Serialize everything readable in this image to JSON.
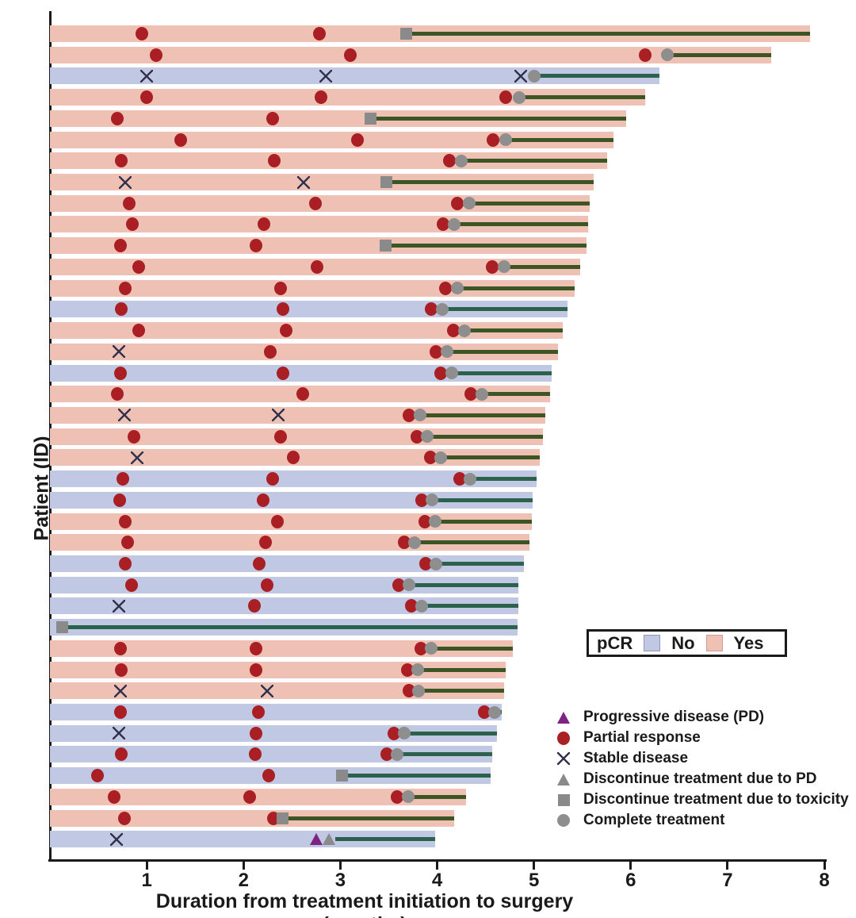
{
  "ylabel": "Patient (ID)",
  "xlabel": "Duration from treatment initiation to surgery (months)",
  "pcr_legend": {
    "title": "pCR",
    "no_label": "No",
    "yes_label": "Yes"
  },
  "marker_legend": [
    {
      "icon": "progressive-disease-triangle-icon",
      "type": "pd",
      "label": "Progressive disease (PD)"
    },
    {
      "icon": "partial-response-circle-icon",
      "type": "pr",
      "label": "Partial response"
    },
    {
      "icon": "stable-disease-x-icon",
      "type": "sd",
      "label": "Stable disease"
    },
    {
      "icon": "discontinue-pd-triangle-icon",
      "type": "dpd",
      "label": "Discontinue treatment due to PD"
    },
    {
      "icon": "discontinue-toxicity-square-icon",
      "type": "tox",
      "label": "Discontinue treatment due to toxicity"
    },
    {
      "icon": "complete-treatment-circle-icon",
      "type": "ct",
      "label": "Complete treatment"
    }
  ],
  "colors": {
    "pcr_yes_bar": "#efc1b5",
    "pcr_no_bar": "#c1c8e4",
    "partial_response": "#a91f24",
    "progressive_disease": "#7d2483",
    "gray_marker": "#8a8a8a",
    "line_on_yes": "#3b5524",
    "line_on_no": "#2c624c",
    "axis": "#1a1a1a"
  },
  "chart_data": {
    "type": "swimmer-bar",
    "x_axis": {
      "label": "Duration from treatment initiation to surgery (months)",
      "ticks": [
        1,
        2,
        3,
        4,
        5,
        6,
        7,
        8
      ],
      "range": [
        0,
        8
      ]
    },
    "y_axis": {
      "label": "Patient (ID)"
    },
    "marker_types": {
      "pr": "partial response",
      "sd": "stable disease",
      "ct": "complete treatment",
      "tox": "discontinue due to toxicity",
      "pd": "progressive disease",
      "dpd": "discontinue due to PD"
    },
    "patients": [
      {
        "pcr": "yes",
        "surgery": 7.85,
        "line_start": 3.68,
        "markers": [
          {
            "type": "pr",
            "x": 0.95
          },
          {
            "type": "pr",
            "x": 2.78
          },
          {
            "type": "tox",
            "x": 3.68
          }
        ]
      },
      {
        "pcr": "yes",
        "surgery": 7.45,
        "line_start": 6.38,
        "markers": [
          {
            "type": "pr",
            "x": 1.1
          },
          {
            "type": "pr",
            "x": 3.1
          },
          {
            "type": "pr",
            "x": 6.15
          },
          {
            "type": "ct",
            "x": 6.38
          }
        ]
      },
      {
        "pcr": "no",
        "surgery": 6.3,
        "line_start": 5.0,
        "markers": [
          {
            "type": "sd",
            "x": 1.0
          },
          {
            "type": "sd",
            "x": 2.85
          },
          {
            "type": "sd",
            "x": 4.86
          },
          {
            "type": "ct",
            "x": 5.0
          }
        ]
      },
      {
        "pcr": "yes",
        "surgery": 6.15,
        "line_start": 4.85,
        "markers": [
          {
            "type": "pr",
            "x": 1.0
          },
          {
            "type": "pr",
            "x": 2.8
          },
          {
            "type": "pr",
            "x": 4.71
          },
          {
            "type": "ct",
            "x": 4.85
          }
        ]
      },
      {
        "pcr": "yes",
        "surgery": 5.95,
        "line_start": 3.31,
        "markers": [
          {
            "type": "pr",
            "x": 0.7
          },
          {
            "type": "pr",
            "x": 2.3
          },
          {
            "type": "tox",
            "x": 3.31
          }
        ]
      },
      {
        "pcr": "yes",
        "surgery": 5.82,
        "line_start": 4.71,
        "markers": [
          {
            "type": "pr",
            "x": 1.35
          },
          {
            "type": "pr",
            "x": 3.18
          },
          {
            "type": "pr",
            "x": 4.58
          },
          {
            "type": "ct",
            "x": 4.71
          }
        ]
      },
      {
        "pcr": "yes",
        "surgery": 5.76,
        "line_start": 4.25,
        "markers": [
          {
            "type": "pr",
            "x": 0.74
          },
          {
            "type": "pr",
            "x": 2.32
          },
          {
            "type": "pr",
            "x": 4.13
          },
          {
            "type": "ct",
            "x": 4.25
          }
        ]
      },
      {
        "pcr": "yes",
        "surgery": 5.62,
        "line_start": 3.48,
        "markers": [
          {
            "type": "sd",
            "x": 0.78
          },
          {
            "type": "sd",
            "x": 2.62
          },
          {
            "type": "tox",
            "x": 3.48
          }
        ]
      },
      {
        "pcr": "yes",
        "surgery": 5.58,
        "line_start": 4.33,
        "markers": [
          {
            "type": "pr",
            "x": 0.82
          },
          {
            "type": "pr",
            "x": 2.74
          },
          {
            "type": "pr",
            "x": 4.21
          },
          {
            "type": "ct",
            "x": 4.33
          }
        ]
      },
      {
        "pcr": "yes",
        "surgery": 5.56,
        "line_start": 4.18,
        "markers": [
          {
            "type": "pr",
            "x": 0.85
          },
          {
            "type": "pr",
            "x": 2.21
          },
          {
            "type": "pr",
            "x": 4.06
          },
          {
            "type": "ct",
            "x": 4.18
          }
        ]
      },
      {
        "pcr": "yes",
        "surgery": 5.54,
        "line_start": 3.47,
        "markers": [
          {
            "type": "pr",
            "x": 0.73
          },
          {
            "type": "pr",
            "x": 2.13
          },
          {
            "type": "tox",
            "x": 3.47
          }
        ]
      },
      {
        "pcr": "yes",
        "surgery": 5.48,
        "line_start": 4.69,
        "markers": [
          {
            "type": "pr",
            "x": 0.92
          },
          {
            "type": "pr",
            "x": 2.76
          },
          {
            "type": "pr",
            "x": 4.57
          },
          {
            "type": "ct",
            "x": 4.69
          }
        ]
      },
      {
        "pcr": "yes",
        "surgery": 5.42,
        "line_start": 4.21,
        "markers": [
          {
            "type": "pr",
            "x": 0.78
          },
          {
            "type": "pr",
            "x": 2.38
          },
          {
            "type": "pr",
            "x": 4.09
          },
          {
            "type": "ct",
            "x": 4.21
          }
        ]
      },
      {
        "pcr": "no",
        "surgery": 5.35,
        "line_start": 4.05,
        "markers": [
          {
            "type": "pr",
            "x": 0.74
          },
          {
            "type": "pr",
            "x": 2.41
          },
          {
            "type": "pr",
            "x": 3.94
          },
          {
            "type": "ct",
            "x": 4.05
          }
        ]
      },
      {
        "pcr": "yes",
        "surgery": 5.3,
        "line_start": 4.28,
        "markers": [
          {
            "type": "pr",
            "x": 0.92
          },
          {
            "type": "pr",
            "x": 2.44
          },
          {
            "type": "pr",
            "x": 4.17
          },
          {
            "type": "ct",
            "x": 4.28
          }
        ]
      },
      {
        "pcr": "yes",
        "surgery": 5.25,
        "line_start": 4.1,
        "markers": [
          {
            "type": "sd",
            "x": 0.71
          },
          {
            "type": "pr",
            "x": 2.28
          },
          {
            "type": "pr",
            "x": 3.99
          },
          {
            "type": "ct",
            "x": 4.1
          }
        ]
      },
      {
        "pcr": "no",
        "surgery": 5.18,
        "line_start": 4.15,
        "markers": [
          {
            "type": "pr",
            "x": 0.73
          },
          {
            "type": "pr",
            "x": 2.41
          },
          {
            "type": "pr",
            "x": 4.04
          },
          {
            "type": "ct",
            "x": 4.15
          }
        ]
      },
      {
        "pcr": "yes",
        "surgery": 5.17,
        "line_start": 4.46,
        "markers": [
          {
            "type": "pr",
            "x": 0.7
          },
          {
            "type": "pr",
            "x": 2.61
          },
          {
            "type": "pr",
            "x": 4.35
          },
          {
            "type": "ct",
            "x": 4.46
          }
        ]
      },
      {
        "pcr": "yes",
        "surgery": 5.12,
        "line_start": 3.82,
        "markers": [
          {
            "type": "sd",
            "x": 0.77
          },
          {
            "type": "sd",
            "x": 2.36
          },
          {
            "type": "pr",
            "x": 3.71
          },
          {
            "type": "ct",
            "x": 3.82
          }
        ]
      },
      {
        "pcr": "yes",
        "surgery": 5.09,
        "line_start": 3.9,
        "markers": [
          {
            "type": "pr",
            "x": 0.87
          },
          {
            "type": "pr",
            "x": 2.38
          },
          {
            "type": "pr",
            "x": 3.79
          },
          {
            "type": "ct",
            "x": 3.9
          }
        ]
      },
      {
        "pcr": "yes",
        "surgery": 5.06,
        "line_start": 4.04,
        "markers": [
          {
            "type": "sd",
            "x": 0.9
          },
          {
            "type": "pr",
            "x": 2.51
          },
          {
            "type": "pr",
            "x": 3.93
          },
          {
            "type": "ct",
            "x": 4.04
          }
        ]
      },
      {
        "pcr": "no",
        "surgery": 5.03,
        "line_start": 4.34,
        "markers": [
          {
            "type": "pr",
            "x": 0.75
          },
          {
            "type": "pr",
            "x": 2.3
          },
          {
            "type": "pr",
            "x": 4.23
          },
          {
            "type": "ct",
            "x": 4.34
          }
        ]
      },
      {
        "pcr": "no",
        "surgery": 4.99,
        "line_start": 3.95,
        "markers": [
          {
            "type": "pr",
            "x": 0.72
          },
          {
            "type": "pr",
            "x": 2.2
          },
          {
            "type": "pr",
            "x": 3.84
          },
          {
            "type": "ct",
            "x": 3.95
          }
        ]
      },
      {
        "pcr": "yes",
        "surgery": 4.98,
        "line_start": 3.98,
        "markers": [
          {
            "type": "pr",
            "x": 0.78
          },
          {
            "type": "pr",
            "x": 2.35
          },
          {
            "type": "pr",
            "x": 3.87
          },
          {
            "type": "ct",
            "x": 3.98
          }
        ]
      },
      {
        "pcr": "yes",
        "surgery": 4.95,
        "line_start": 3.77,
        "markers": [
          {
            "type": "pr",
            "x": 0.8
          },
          {
            "type": "pr",
            "x": 2.23
          },
          {
            "type": "pr",
            "x": 3.66
          },
          {
            "type": "ct",
            "x": 3.77
          }
        ]
      },
      {
        "pcr": "no",
        "surgery": 4.9,
        "line_start": 3.99,
        "markers": [
          {
            "type": "pr",
            "x": 0.78
          },
          {
            "type": "pr",
            "x": 2.16
          },
          {
            "type": "pr",
            "x": 3.88
          },
          {
            "type": "ct",
            "x": 3.99
          }
        ]
      },
      {
        "pcr": "no",
        "surgery": 4.84,
        "line_start": 3.71,
        "markers": [
          {
            "type": "pr",
            "x": 0.84
          },
          {
            "type": "pr",
            "x": 2.24
          },
          {
            "type": "pr",
            "x": 3.6
          },
          {
            "type": "ct",
            "x": 3.71
          }
        ]
      },
      {
        "pcr": "no",
        "surgery": 4.84,
        "line_start": 3.84,
        "markers": [
          {
            "type": "sd",
            "x": 0.71
          },
          {
            "type": "pr",
            "x": 2.11
          },
          {
            "type": "pr",
            "x": 3.73
          },
          {
            "type": "ct",
            "x": 3.84
          }
        ]
      },
      {
        "pcr": "no",
        "surgery": 4.83,
        "line_start": 0.13,
        "markers": [
          {
            "type": "tox",
            "x": 0.13
          }
        ]
      },
      {
        "pcr": "yes",
        "surgery": 4.78,
        "line_start": 3.94,
        "markers": [
          {
            "type": "pr",
            "x": 0.73
          },
          {
            "type": "pr",
            "x": 2.13
          },
          {
            "type": "pr",
            "x": 3.83
          },
          {
            "type": "ct",
            "x": 3.94
          }
        ]
      },
      {
        "pcr": "yes",
        "surgery": 4.71,
        "line_start": 3.8,
        "markers": [
          {
            "type": "pr",
            "x": 0.74
          },
          {
            "type": "pr",
            "x": 2.13
          },
          {
            "type": "pr",
            "x": 3.69
          },
          {
            "type": "ct",
            "x": 3.8
          }
        ]
      },
      {
        "pcr": "yes",
        "surgery": 4.69,
        "line_start": 3.81,
        "markers": [
          {
            "type": "sd",
            "x": 0.73
          },
          {
            "type": "sd",
            "x": 2.24
          },
          {
            "type": "pr",
            "x": 3.71
          },
          {
            "type": "ct",
            "x": 3.81
          }
        ]
      },
      {
        "pcr": "no",
        "surgery": 4.67,
        "line_start": 4.59,
        "markers": [
          {
            "type": "pr",
            "x": 0.73
          },
          {
            "type": "pr",
            "x": 2.15
          },
          {
            "type": "pr",
            "x": 4.49
          },
          {
            "type": "ct",
            "x": 4.59
          }
        ]
      },
      {
        "pcr": "no",
        "surgery": 4.62,
        "line_start": 3.66,
        "markers": [
          {
            "type": "sd",
            "x": 0.71
          },
          {
            "type": "pr",
            "x": 2.13
          },
          {
            "type": "pr",
            "x": 3.55
          },
          {
            "type": "ct",
            "x": 3.66
          }
        ]
      },
      {
        "pcr": "no",
        "surgery": 4.57,
        "line_start": 3.59,
        "markers": [
          {
            "type": "pr",
            "x": 0.74
          },
          {
            "type": "pr",
            "x": 2.12
          },
          {
            "type": "pr",
            "x": 3.48
          },
          {
            "type": "ct",
            "x": 3.59
          }
        ]
      },
      {
        "pcr": "no",
        "surgery": 4.55,
        "line_start": 3.02,
        "markers": [
          {
            "type": "pr",
            "x": 0.49
          },
          {
            "type": "pr",
            "x": 2.26
          },
          {
            "type": "tox",
            "x": 3.02
          }
        ]
      },
      {
        "pcr": "yes",
        "surgery": 4.3,
        "line_start": 3.7,
        "markers": [
          {
            "type": "pr",
            "x": 0.66
          },
          {
            "type": "pr",
            "x": 2.06
          },
          {
            "type": "pr",
            "x": 3.59
          },
          {
            "type": "ct",
            "x": 3.7
          }
        ]
      },
      {
        "pcr": "yes",
        "surgery": 4.18,
        "line_start": 2.4,
        "markers": [
          {
            "type": "pr",
            "x": 0.77
          },
          {
            "type": "pr",
            "x": 2.31
          },
          {
            "type": "tox",
            "x": 2.4
          }
        ]
      },
      {
        "pcr": "no",
        "surgery": 3.98,
        "line_start": 2.95,
        "markers": [
          {
            "type": "sd",
            "x": 0.69
          },
          {
            "type": "pd",
            "x": 2.75
          },
          {
            "type": "dpd",
            "x": 2.88
          }
        ]
      }
    ]
  }
}
